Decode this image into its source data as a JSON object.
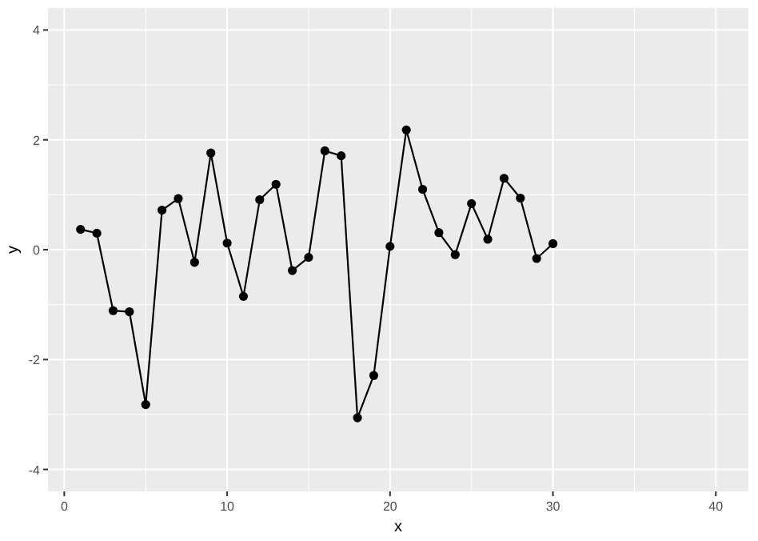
{
  "chart_data": {
    "type": "line",
    "xlabel": "x",
    "ylabel": "y",
    "x": [
      1,
      2,
      3,
      4,
      5,
      6,
      7,
      8,
      9,
      10,
      11,
      12,
      13,
      14,
      15,
      16,
      17,
      18,
      19,
      20,
      21,
      22,
      23,
      24,
      25,
      26,
      27,
      28,
      29,
      30
    ],
    "series": [
      {
        "color": "#000000",
        "values": [
          0.37,
          0.3,
          -1.11,
          -1.13,
          -2.82,
          0.72,
          0.93,
          -0.23,
          1.76,
          0.12,
          -0.85,
          0.91,
          1.19,
          -0.38,
          -0.14,
          1.8,
          1.71,
          -3.06,
          -2.29,
          0.06,
          2.18,
          1.1,
          0.31,
          -0.09,
          0.84,
          0.19,
          1.3,
          0.94,
          -0.16,
          0.11
        ]
      }
    ],
    "xlim": [
      -1,
      42
    ],
    "xticks": [
      0,
      10,
      20,
      30,
      40
    ],
    "ylim": [
      -4.4,
      4.4
    ],
    "yticks": [
      -4,
      -2,
      0,
      2,
      4
    ],
    "grid": true,
    "marker": "circle",
    "line_style": "solid"
  }
}
